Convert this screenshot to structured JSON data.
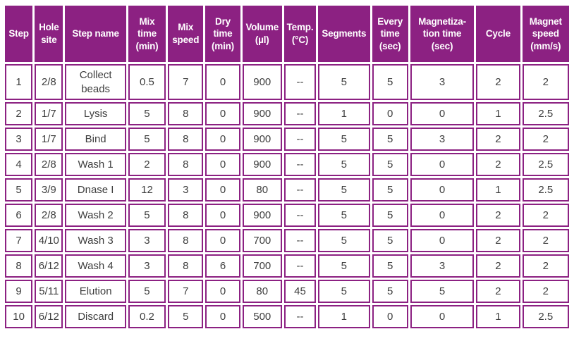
{
  "colors": {
    "accent": "#8c2182",
    "cell_text": "#3e3e3e",
    "header_text": "#ffffff",
    "page_bg": "#ffffff"
  },
  "chart_data": {
    "type": "table",
    "columns": [
      {
        "key": "step",
        "label": "Step"
      },
      {
        "key": "hole_site",
        "label": "Hole\nsite"
      },
      {
        "key": "step_name",
        "label": "Step name"
      },
      {
        "key": "mix_time_min",
        "label": "Mix\ntime\n(min)"
      },
      {
        "key": "mix_speed",
        "label": "Mix\nspeed"
      },
      {
        "key": "dry_time_min",
        "label": "Dry\ntime\n(min)"
      },
      {
        "key": "volume_ul",
        "label": "Volume\n(µl)"
      },
      {
        "key": "temp_c",
        "label": "Temp.\n(°C)"
      },
      {
        "key": "segments",
        "label": "Segments"
      },
      {
        "key": "every_time_sec",
        "label": "Every\ntime\n(sec)"
      },
      {
        "key": "magnetization_time_sec",
        "label": "Magnetiza-\ntion time\n(sec)"
      },
      {
        "key": "cycle",
        "label": "Cycle"
      },
      {
        "key": "magnet_speed_mm_s",
        "label": "Magnet\nspeed\n(mm/s)"
      }
    ],
    "rows": [
      [
        "1",
        "2/8",
        "Collect\nbeads",
        "0.5",
        "7",
        "0",
        "900",
        "--",
        "5",
        "5",
        "3",
        "2",
        "2"
      ],
      [
        "2",
        "1/7",
        "Lysis",
        "5",
        "8",
        "0",
        "900",
        "--",
        "1",
        "0",
        "0",
        "1",
        "2.5"
      ],
      [
        "3",
        "1/7",
        "Bind",
        "5",
        "8",
        "0",
        "900",
        "--",
        "5",
        "5",
        "3",
        "2",
        "2"
      ],
      [
        "4",
        "2/8",
        "Wash 1",
        "2",
        "8",
        "0",
        "900",
        "--",
        "5",
        "5",
        "0",
        "2",
        "2.5"
      ],
      [
        "5",
        "3/9",
        "Dnase I",
        "12",
        "3",
        "0",
        "80",
        "--",
        "5",
        "5",
        "0",
        "1",
        "2.5"
      ],
      [
        "6",
        "2/8",
        "Wash 2",
        "5",
        "8",
        "0",
        "900",
        "--",
        "5",
        "5",
        "0",
        "2",
        "2"
      ],
      [
        "7",
        "4/10",
        "Wash 3",
        "3",
        "8",
        "0",
        "700",
        "--",
        "5",
        "5",
        "0",
        "2",
        "2"
      ],
      [
        "8",
        "6/12",
        "Wash 4",
        "3",
        "8",
        "6",
        "700",
        "--",
        "5",
        "5",
        "3",
        "2",
        "2"
      ],
      [
        "9",
        "5/11",
        "Elution",
        "5",
        "7",
        "0",
        "80",
        "45",
        "5",
        "5",
        "5",
        "2",
        "2"
      ],
      [
        "10",
        "6/12",
        "Discard",
        "0.2",
        "5",
        "0",
        "500",
        "--",
        "1",
        "0",
        "0",
        "1",
        "2.5"
      ]
    ]
  }
}
